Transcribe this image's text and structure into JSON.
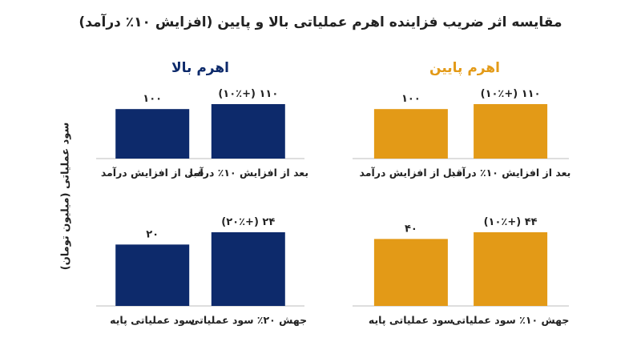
{
  "title": "مقایسه اثر ضریب فزاینده اهرم عملیاتی بالا و پایین (افزایش ۱۰٪ درآمد)",
  "ylabel": "سود عملیاتی (میلیون تومان)",
  "groups": {
    "high": {
      "title": "اهرم بالا",
      "color": "#0d2a6b"
    },
    "low": {
      "title": "اهرم پایین",
      "color": "#e39a17"
    }
  },
  "chart_data": [
    {
      "type": "bar",
      "group": "high",
      "row": "top",
      "categories": [
        "قبل از افزایش درآمد",
        "بعد از افزایش ۱۰٪ درآمد"
      ],
      "values": [
        100,
        110
      ],
      "data_labels": [
        "۱۰۰",
        "۱۱۰ (+۱۰٪)"
      ]
    },
    {
      "type": "bar",
      "group": "low",
      "row": "top",
      "categories": [
        "قبل از افزایش درآمد",
        "بعد از افزایش ۱۰٪ درآمد"
      ],
      "values": [
        100,
        110
      ],
      "data_labels": [
        "۱۰۰",
        "۱۱۰ (+۱۰٪)"
      ]
    },
    {
      "type": "bar",
      "group": "high",
      "row": "bottom",
      "categories": [
        "سود عملیاتی پایه",
        "جهش ۲۰٪ سود عملیاتی"
      ],
      "values": [
        20,
        24
      ],
      "data_labels": [
        "۲۰",
        "۲۴ (+۲۰٪)"
      ]
    },
    {
      "type": "bar",
      "group": "low",
      "row": "bottom",
      "categories": [
        "سود عملیاتی پایه",
        "جهش ۱۰٪ سود عملیاتی"
      ],
      "values": [
        40,
        44
      ],
      "data_labels": [
        "۴۰",
        "۴۴ (+۱۰٪)"
      ]
    }
  ]
}
